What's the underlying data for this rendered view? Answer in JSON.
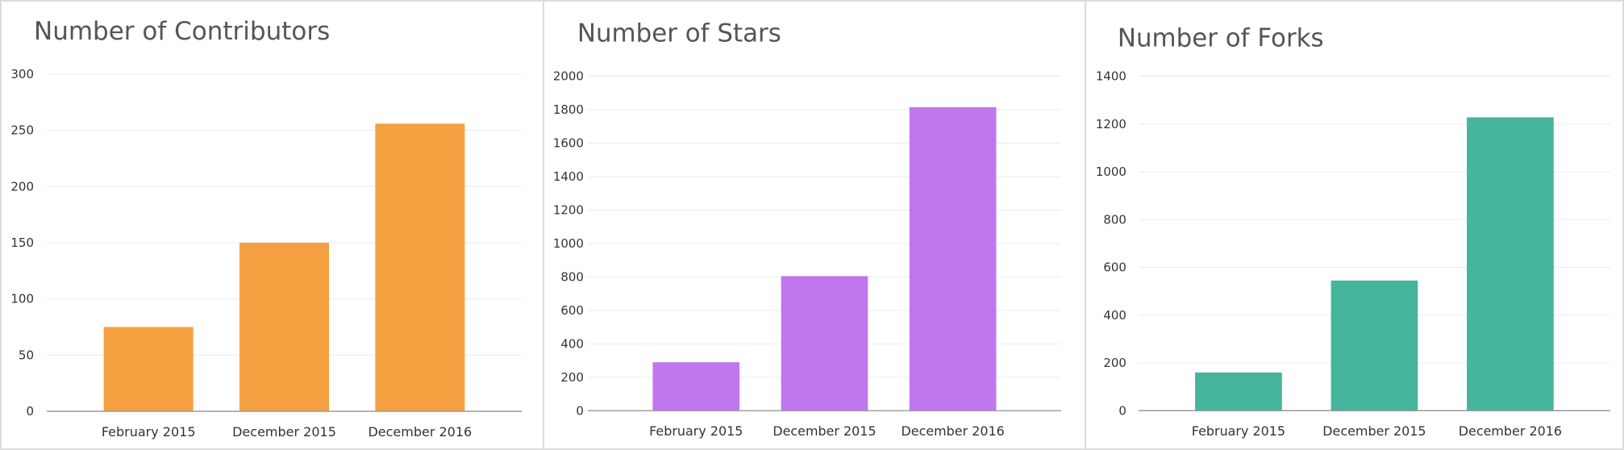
{
  "chart_data": [
    {
      "type": "bar",
      "title": "Number of Contributors",
      "categories": [
        "February 2015",
        "December 2015",
        "December 2016"
      ],
      "values": [
        75,
        150,
        256
      ],
      "ylim": [
        0,
        300
      ],
      "yticks": [
        0,
        50,
        100,
        150,
        200,
        250,
        300
      ],
      "xlabel": "",
      "ylabel": "",
      "grid": true,
      "color": "#f4a040"
    },
    {
      "type": "bar",
      "title": "Number of Stars",
      "categories": [
        "February 2015",
        "December 2015",
        "December 2016"
      ],
      "values": [
        290,
        805,
        1815
      ],
      "ylim": [
        0,
        2000
      ],
      "yticks": [
        0,
        200,
        400,
        600,
        800,
        1000,
        1200,
        1400,
        1600,
        1800,
        2000
      ],
      "xlabel": "",
      "ylabel": "",
      "grid": true,
      "color": "#c077ee"
    },
    {
      "type": "bar",
      "title": "Number of Forks",
      "categories": [
        "February 2015",
        "December 2015",
        "December 2016"
      ],
      "values": [
        160,
        545,
        1228
      ],
      "ylim": [
        0,
        1400
      ],
      "yticks": [
        0,
        200,
        400,
        600,
        800,
        1000,
        1200,
        1400
      ],
      "xlabel": "",
      "ylabel": "",
      "grid": true,
      "color": "#44b59c"
    }
  ]
}
